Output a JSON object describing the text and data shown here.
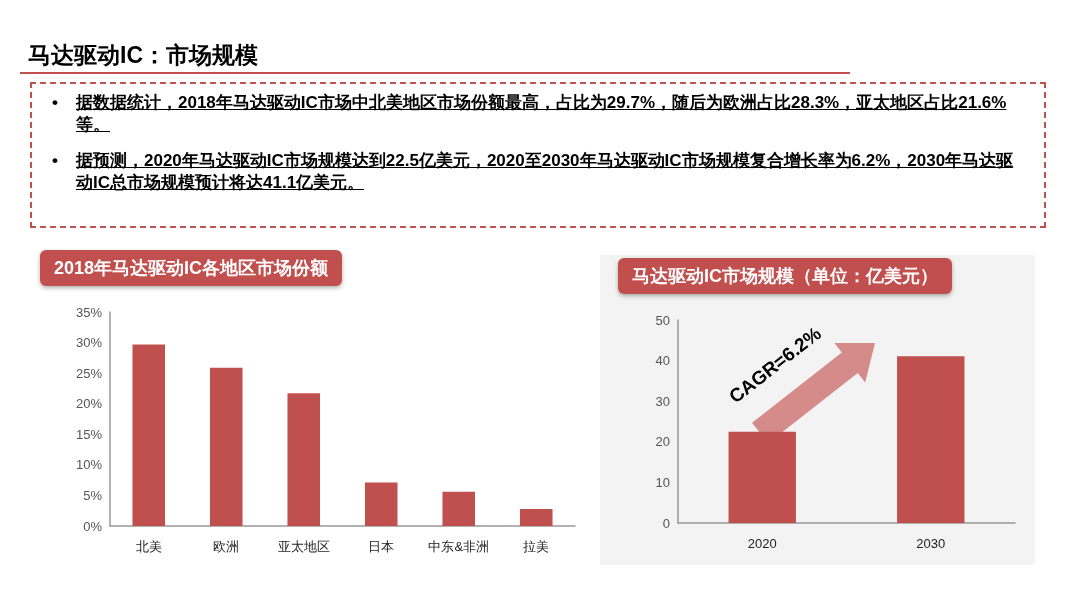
{
  "chart_data": [
    {
      "type": "other",
      "title": "马达驱动IC：市场规模",
      "annotations": [
        "•据数据统计，2018年马达驱动IC市场中北美地区市场份额最高，占比为29.7%，随后为欧洲占比28.3%，亚太地区占比21.6%等。",
        "•据预测，2020年马达驱动IC市场规模达到22.5亿美元，2020至2030年马达驱动IC市场规模复合增长率为6.2%，2030年马达驱动IC总市场规模预计将达41.1亿美元。"
      ]
    },
    {
      "type": "bar",
      "title": "2018年马达驱动IC各地区市场份额",
      "categories": [
        "北美",
        "欧洲",
        "亚太地区",
        "日本",
        "中东&非洲",
        "拉美"
      ],
      "values": [
        29.7,
        25.9,
        21.7,
        7.1,
        5.6,
        2.8
      ],
      "color": "#c0504d",
      "ylim": [
        0,
        35
      ],
      "yticks": [
        {
          "value": 0,
          "label": "0%"
        },
        {
          "value": 5,
          "label": "5%"
        },
        {
          "value": 10,
          "label": "10%"
        },
        {
          "value": 15,
          "label": "15%"
        },
        {
          "value": 20,
          "label": "20%"
        },
        {
          "value": 25,
          "label": "25%"
        },
        {
          "value": 30,
          "label": "30%"
        },
        {
          "value": 35,
          "label": "35%"
        }
      ],
      "grid": false
    },
    {
      "type": "bar",
      "title": "马达驱动IC市场规模（单位：亿美元）",
      "categories": [
        "2020",
        "2030"
      ],
      "values": [
        22.5,
        41.1
      ],
      "color": "#c0504d",
      "ylim": [
        0,
        50
      ],
      "yticks": [
        0,
        10,
        20,
        30,
        40,
        50
      ],
      "grid": false,
      "annotations": [
        "CAGR=6.2%"
      ]
    }
  ]
}
